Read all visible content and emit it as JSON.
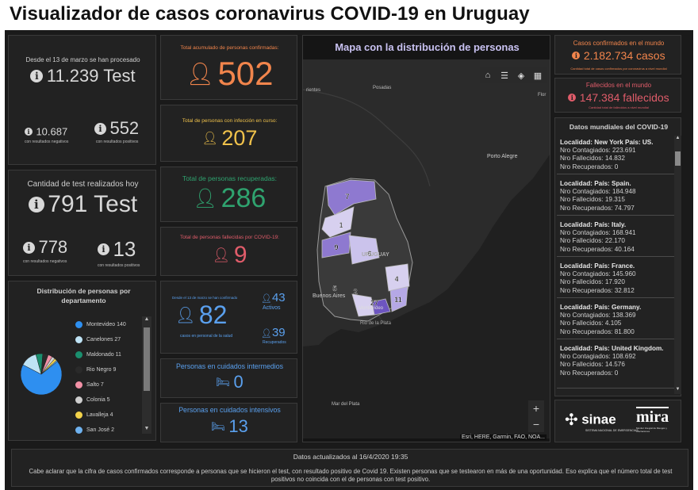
{
  "title": "Visualizador de casos coronavirus COVID-19 en Uruguay",
  "tests": {
    "since_label": "Desde el 13 de marzo se han procesado",
    "total": "11.239 Test",
    "negative_value": "10.687",
    "negative_label": "con resultados negativos",
    "positive_value": "552",
    "positive_label": "con resultados positivos"
  },
  "today": {
    "label": "Cantidad de test realizados hoy",
    "total": "791 Test",
    "negative_value": "778",
    "negative_label": "con resultados negativos",
    "positive_value": "13",
    "positive_label": "con resultados positivos"
  },
  "distribution": {
    "title": "Distribución de personas por departamento",
    "items": [
      {
        "label": "Montevideo",
        "value": "140",
        "color": "#2e8ff0"
      },
      {
        "label": "Canelones",
        "value": "27",
        "color": "#bfe3f5"
      },
      {
        "label": "Maldonado",
        "value": "11",
        "color": "#1a8f6e"
      },
      {
        "label": "Rio Negro",
        "value": "9",
        "color": "#2a2a2a"
      },
      {
        "label": "Salto",
        "value": "7",
        "color": "#f291a6"
      },
      {
        "label": "Colonia",
        "value": "5",
        "color": "#cfcfcf"
      },
      {
        "label": "Lavalleja",
        "value": "4",
        "color": "#f2d24a"
      },
      {
        "label": "San José",
        "value": "2",
        "color": "#6fb2ef"
      }
    ]
  },
  "confirmed": {
    "label": "Total acumulado de personas confirmadas:",
    "value": "502"
  },
  "active": {
    "label": "Total de personas con infección en curso:",
    "value": "207"
  },
  "recovered": {
    "label": "Total de personas recuperadas:",
    "value": "286"
  },
  "deceased": {
    "label": "Total de personas fallecidas por COVID-19:",
    "value": "9"
  },
  "health": {
    "since_label": "Desde el 13 de marzo se han confirmado",
    "value": "82",
    "label": "casos en personal de la salud",
    "active_value": "43",
    "active_label": "Activos",
    "recovered_value": "39",
    "recovered_label": "Recuperados"
  },
  "intermediate": {
    "label": "Personas en cuidados intermedios",
    "value": "0"
  },
  "intensive": {
    "label": "Personas en cuidados intensivos",
    "value": "13"
  },
  "map": {
    "title": "Mapa con la distribución de personas",
    "attribution": "Esri, HERE, Garmin, FAO, NOA...",
    "places": {
      "rientes": "rientes",
      "posadas": "Posadas",
      "flor": "Flor",
      "porto_alegre": "Porto Alegre",
      "uruguay": "URUGUAY",
      "buenos_aires": "Buenos Aires",
      "montevideo": "Montevideo",
      "rio_plata": "Rio de la Plata",
      "mar_plata": "Mar del Plata"
    },
    "markers": [
      "7",
      "1",
      "9",
      "5",
      "2",
      "27",
      "4",
      "11",
      "6"
    ],
    "zoom_in": "+",
    "zoom_out": "−"
  },
  "world": {
    "confirmed_label": "Casos confirmados en el mundo",
    "confirmed_value": "2.182.734 casos",
    "confirmed_source": "Cantidad total de casos confirmados por coronavirus a nivel mundial",
    "deaths_label": "Fallecidos en el mundo",
    "deaths_value": "147.384 fallecidos",
    "deaths_source": "Cantidad total de fallecidos a nivel mundial",
    "list_title": "Datos mundiales del COVID-19",
    "items": [
      {
        "loc": "Localidad: New York País: US.",
        "contagiados": "Nro Contagiados: 223.691",
        "fallecidos": "Nro Fallecidos: 14.832",
        "recuperados": "Nro Recuperados: 0"
      },
      {
        "loc": "Localidad:  País: Spain.",
        "contagiados": "Nro Contagiados: 184.948",
        "fallecidos": "Nro Fallecidos: 19.315",
        "recuperados": "Nro Recuperados: 74.797"
      },
      {
        "loc": "Localidad:  País: Italy.",
        "contagiados": "Nro Contagiados: 168.941",
        "fallecidos": "Nro Fallecidos: 22.170",
        "recuperados": "Nro Recuperados: 40.164"
      },
      {
        "loc": "Localidad:  País: France.",
        "contagiados": "Nro Contagiados: 145.960",
        "fallecidos": "Nro Fallecidos: 17.920",
        "recuperados": "Nro Recuperados: 32.812"
      },
      {
        "loc": "Localidad:  País: Germany.",
        "contagiados": "Nro Contagiados: 138.369",
        "fallecidos": "Nro Fallecidos: 4.105",
        "recuperados": "Nro Recuperados: 81.800"
      },
      {
        "loc": "Localidad:  País: United Kingdom.",
        "contagiados": "Nro Contagiados: 108.692",
        "fallecidos": "Nro Fallecidos: 14.576",
        "recuperados": "Nro Recuperados: 0"
      }
    ]
  },
  "logos": {
    "sinae": "sinae",
    "sinae_sub": "SISTEMA NACIONAL DE EMERGENCIAS",
    "mira": "mira",
    "mira_sub": "Monitor Integral de Riesgos y Afectaciones"
  },
  "footer": {
    "updated": "Datos actualizados al 16/4/2020 19:35",
    "note": "Cabe aclarar que la cifra de casos confirmados corresponde a personas que se hicieron el test, con resultado positivo de Covid 19. Existen personas que se testearon en más de una oportunidad. Eso explica que el número total de test positivos no coincida con el de personas con test positivo."
  }
}
